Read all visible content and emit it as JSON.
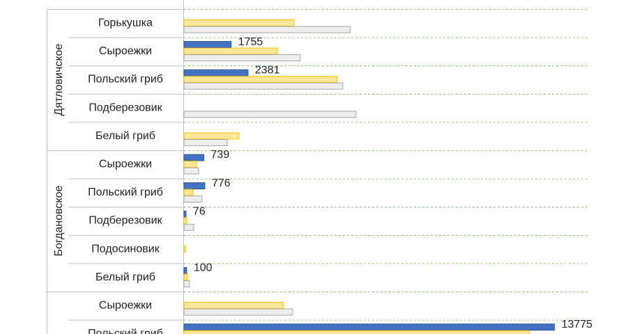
{
  "chart_data": {
    "type": "bar",
    "orientation": "horizontal",
    "groups": [
      {
        "name": "Дятловичское",
        "categories": [
          "Горькушка",
          "Сыроежки",
          "Польский гриб",
          "Подберезовик",
          "Белый гриб"
        ]
      },
      {
        "name": "Богдановское",
        "categories": [
          "Сыроежки",
          "Польский гриб",
          "Подберезовик",
          "Подосиновик",
          "Белый гриб"
        ]
      },
      {
        "name": null,
        "categories": [
          "Сыроежки",
          "Польский гриб"
        ]
      }
    ],
    "series": [
      {
        "color": "#4472c4",
        "edge": "#2f5597",
        "data_labels": true,
        "values": [
          null,
          1755,
          2381,
          null,
          null,
          739,
          776,
          76,
          null,
          100,
          null,
          13775
        ]
      },
      {
        "color": "#ffe699",
        "edge": "#ffc000",
        "data_labels": false,
        "values": [
          4091,
          3470,
          5697,
          null,
          2046,
          466,
          337,
          104,
          52,
          130,
          3703,
          12843
        ]
      },
      {
        "color": "#ededed",
        "edge": "#a5a5a5",
        "data_labels": false,
        "values": [
          6189,
          4324,
          5904,
          6396,
          1605,
          544,
          673,
          363,
          null,
          207,
          4039,
          null
        ]
      }
    ],
    "xlim": [
      0,
      15000
    ],
    "grid": true
  }
}
